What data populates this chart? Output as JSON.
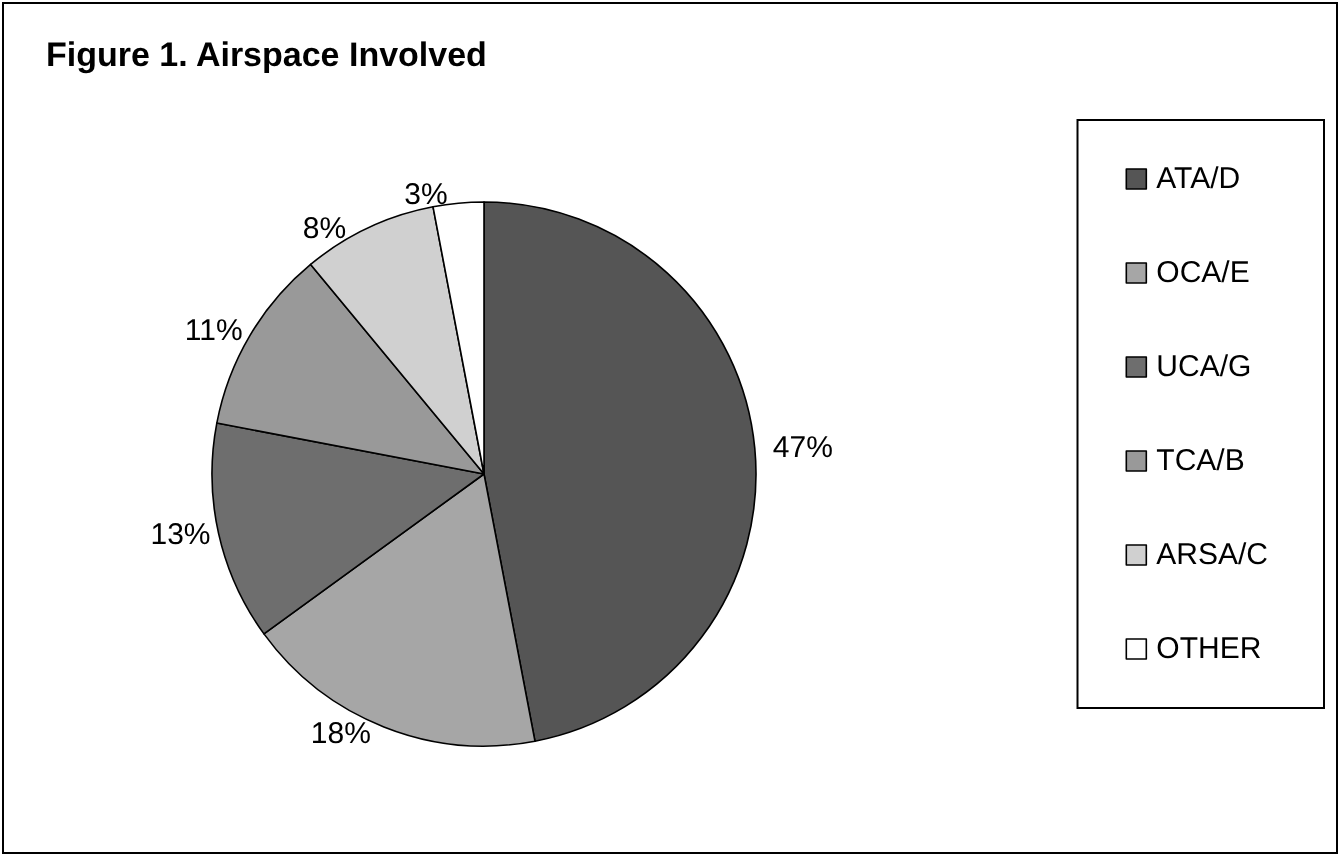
{
  "chart_data": {
    "type": "pie",
    "title": "Figure 1. Airspace Involved",
    "categories": [
      "ATA/D",
      "OCA/E",
      "UCA/G",
      "TCA/B",
      "ARSA/C",
      "OTHER"
    ],
    "values": [
      47,
      18,
      13,
      11,
      8,
      3
    ],
    "colors": [
      "#555555",
      "#a6a6a6",
      "#6e6e6e",
      "#999999",
      "#d0d0d0",
      "#ffffff"
    ],
    "value_labels": [
      "47%",
      "18%",
      "13%",
      "11%",
      "8%",
      "3%"
    ],
    "legend": "right"
  }
}
